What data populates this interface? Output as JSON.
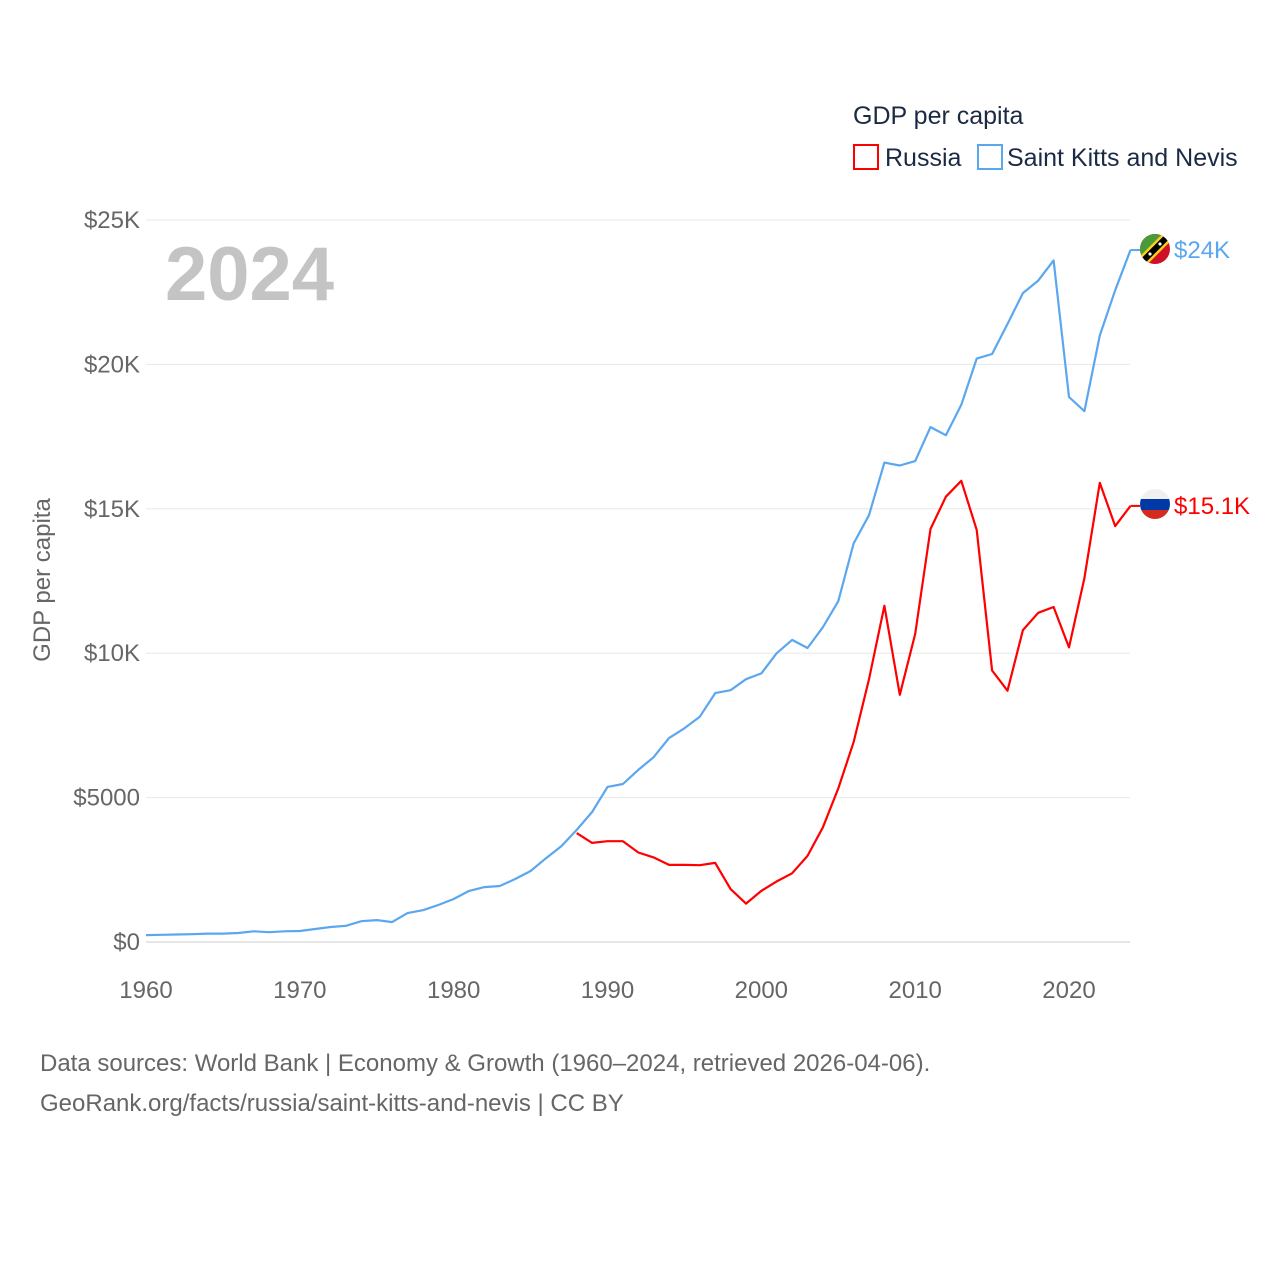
{
  "chart_data": {
    "type": "line",
    "title": "GDP per capita",
    "highlight_year": "2024",
    "xlabel": "",
    "ylabel": "GDP per capita",
    "xlim": [
      1960,
      2024
    ],
    "ylim": [
      0,
      25000
    ],
    "x_ticks": [
      "1960",
      "1970",
      "1980",
      "1990",
      "2000",
      "2010",
      "2020"
    ],
    "y_ticks": [
      {
        "value": 0,
        "label": "$0"
      },
      {
        "value": 5000,
        "label": "$5000"
      },
      {
        "value": 10000,
        "label": "$10K"
      },
      {
        "value": 15000,
        "label": "$15K"
      },
      {
        "value": 20000,
        "label": "$20K"
      },
      {
        "value": 25000,
        "label": "$25K"
      }
    ],
    "grid": true,
    "legend_position": "top-right",
    "series": [
      {
        "name": "Russia",
        "color": "#ff0000",
        "end_label": "$15.1K",
        "start_year": 1988,
        "values": [
          3770,
          3430,
          3490,
          3490,
          3100,
          2930,
          2670,
          2670,
          2660,
          2740,
          1830,
          1330,
          1770,
          2100,
          2380,
          2980,
          3970,
          5320,
          6920,
          9100,
          11640,
          8560,
          10670,
          14300,
          15420,
          15970,
          14270,
          9400,
          8700,
          10800,
          11400,
          11600,
          10200,
          12600,
          15900,
          14400,
          15100
        ]
      },
      {
        "name": "Saint Kitts and Nevis",
        "color": "#5ba7ef",
        "end_label": "$24K",
        "start_year": 1960,
        "values": [
          240,
          250,
          260,
          270,
          290,
          290,
          310,
          370,
          340,
          370,
          380,
          450,
          520,
          560,
          720,
          760,
          690,
          1000,
          1100,
          1280,
          1490,
          1770,
          1900,
          1940,
          2180,
          2460,
          2900,
          3320,
          3880,
          4500,
          5370,
          5470,
          5960,
          6400,
          7060,
          7400,
          7800,
          8620,
          8720,
          9100,
          9300,
          10000,
          10460,
          10180,
          10900,
          11800,
          13800,
          14780,
          16600,
          16500,
          16650,
          17830,
          17550,
          18600,
          20200,
          20360,
          21400,
          22470,
          22900,
          23600,
          18870,
          18380,
          21000,
          22570,
          23960
        ]
      }
    ]
  },
  "footer": {
    "line1": "Data sources: World Bank | Economy & Growth (1960–2024, retrieved 2026-04-06).",
    "line2": "GeoRank.org/facts/russia/saint-kitts-and-nevis | CC BY"
  }
}
